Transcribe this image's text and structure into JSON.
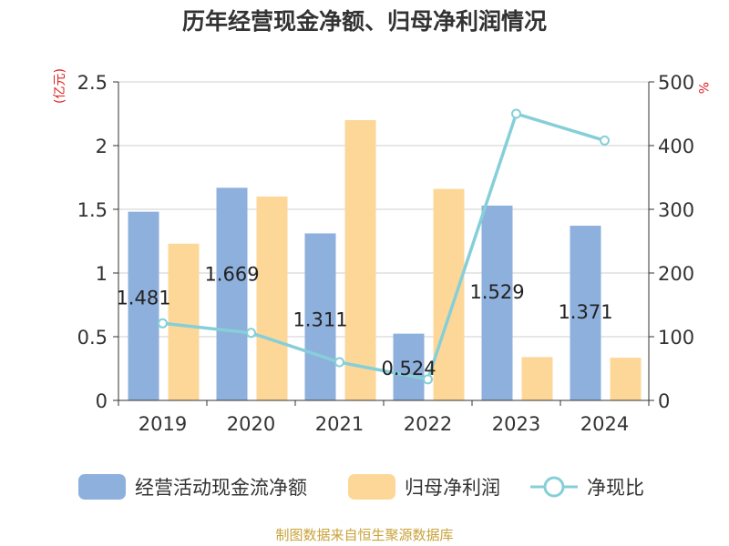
{
  "chart_data": {
    "type": "bar",
    "title": "历年经营现金净额、归母净利润情况",
    "categories": [
      "2019",
      "2020",
      "2021",
      "2022",
      "2023",
      "2024"
    ],
    "series": [
      {
        "name": "经营活动现金流净额",
        "type": "bar",
        "axis": "left",
        "color": "#8eb0dc",
        "values": [
          1.481,
          1.669,
          1.311,
          0.524,
          1.529,
          1.371
        ]
      },
      {
        "name": "归母净利润",
        "type": "bar",
        "axis": "left",
        "color": "#fdd798",
        "values": [
          1.23,
          1.6,
          2.2,
          1.66,
          0.34,
          0.335
        ]
      },
      {
        "name": "净现比",
        "type": "line",
        "axis": "right",
        "color": "#86cfd8",
        "values": [
          121,
          106,
          60,
          33,
          450,
          408
        ]
      }
    ],
    "data_labels": [
      "1.481",
      "1.669",
      "1.311",
      "0.524",
      "1.529",
      "1.371"
    ],
    "left_axis": {
      "unit": "(亿元)",
      "ylim": [
        0,
        2.5
      ],
      "ticks": [
        "0",
        "0.5",
        "1",
        "1.5",
        "2",
        "2.5"
      ]
    },
    "right_axis": {
      "unit": "%",
      "ylim": [
        0,
        500
      ],
      "ticks": [
        "0",
        "100",
        "200",
        "300",
        "400",
        "500"
      ]
    },
    "grid": true,
    "legend_position": "bottom",
    "source": "制图数据来自恒生聚源数据库"
  }
}
